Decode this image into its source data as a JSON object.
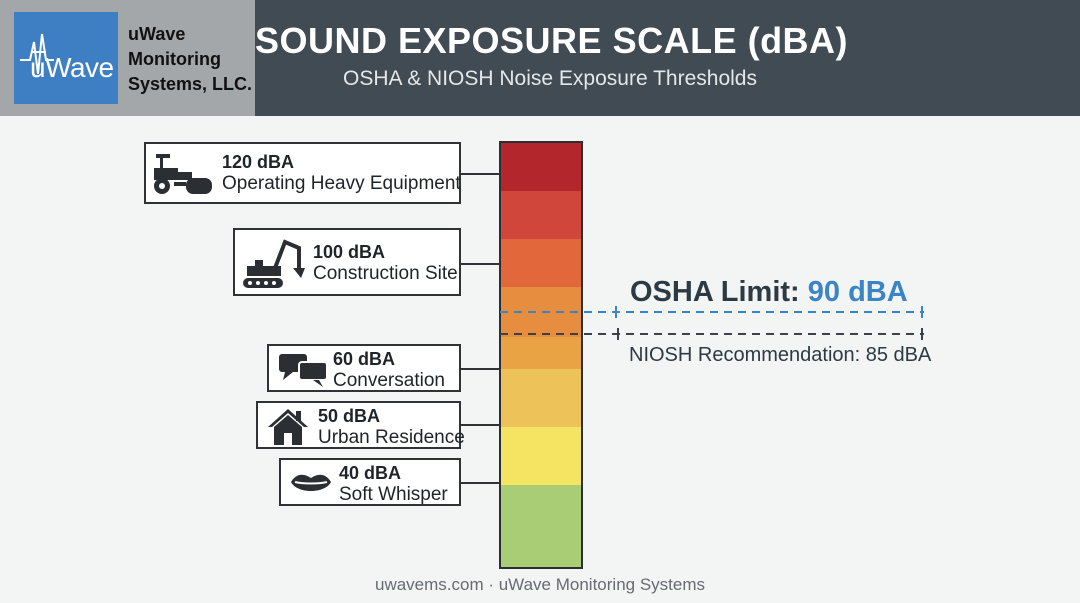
{
  "header": {
    "logo_text": "uWave",
    "company_lines": [
      "uWave",
      "Monitoring",
      "Systems, LLC."
    ],
    "title": "SOUND EXPOSURE SCALE (dBA)",
    "subtitle": "OSHA & NIOSH Noise Exposure Thresholds"
  },
  "scale": {
    "bands": [
      "#b3262b",
      "#d0463a",
      "#e2683b",
      "#e78d3f",
      "#e9a244",
      "#edc258",
      "#f4e462",
      "#a9cd74"
    ],
    "colors": {
      "header_bg": "#414b53",
      "accent": "#3b84c6",
      "logo_bg": "#3e7fc4"
    }
  },
  "sources": [
    {
      "level": "120 dBA",
      "label": "Operating Heavy Equipment",
      "icon": "heavy-equipment-icon"
    },
    {
      "level": "100 dBA",
      "label": "Construction Site",
      "icon": "excavator-icon"
    },
    {
      "level": "60 dBA",
      "label": "Conversation",
      "icon": "speech-bubbles-icon"
    },
    {
      "level": "50 dBA",
      "label": "Urban Residence",
      "icon": "house-icon"
    },
    {
      "level": "40 dBA",
      "label": "Soft Whisper",
      "icon": "lips-icon"
    }
  ],
  "thresholds": {
    "osha_prefix": "OSHA Limit: ",
    "osha_value": "90 dBA",
    "niosh_text": "NIOSH Recommendation: 85 dBA"
  },
  "footer": "uwavems.com · uWave Monitoring Systems"
}
